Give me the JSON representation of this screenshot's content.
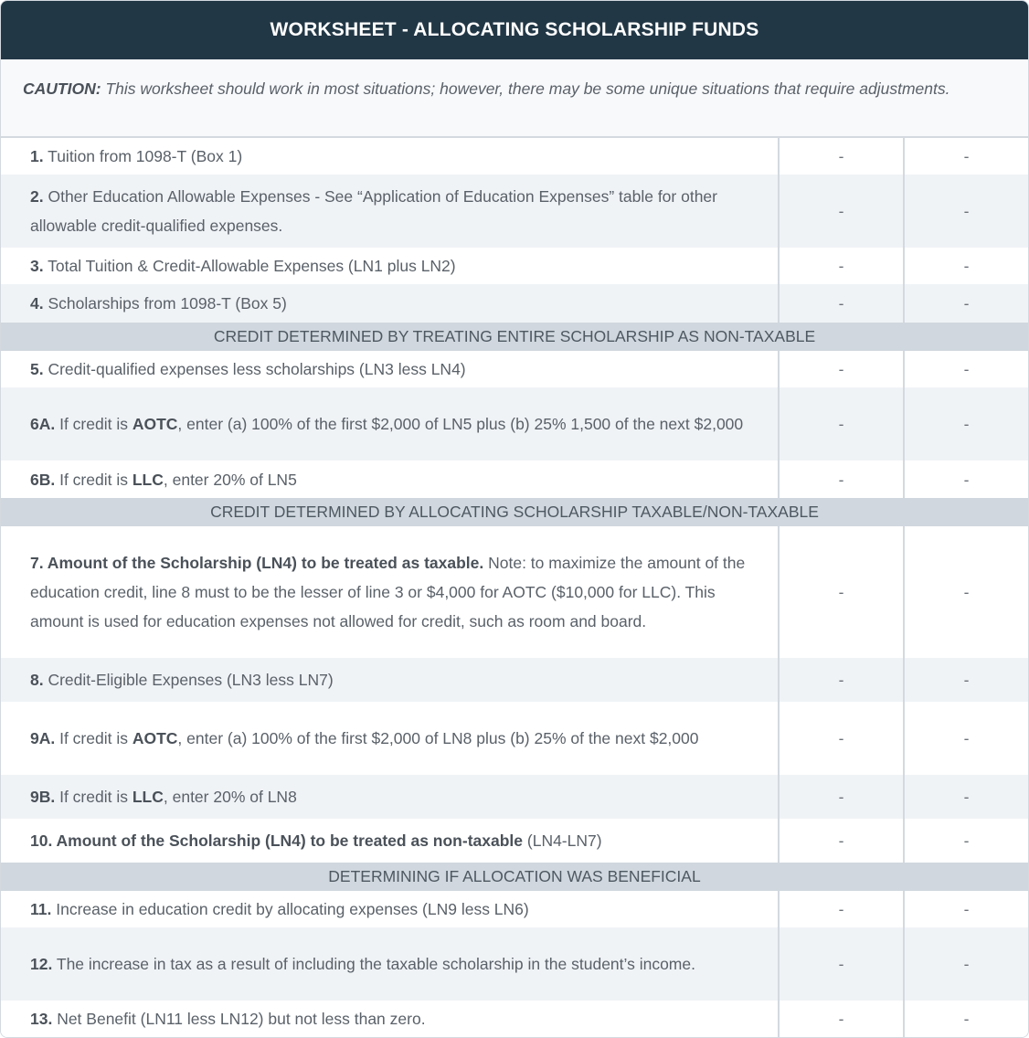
{
  "title": "WORKSHEET - ALLOCATING SCHOLARSHIP FUNDS",
  "caution": {
    "label": "CAUTION:",
    "text": " This worksheet should work in most situations; however, there may be some unique situations that require adjustments."
  },
  "rows": [
    {
      "type": "line",
      "shade": "white",
      "h": 40,
      "segments": [
        {
          "t": "1.",
          "b": true
        },
        {
          "t": " Tuition from 1098-T (Box 1)"
        }
      ],
      "values": [
        "-",
        "-"
      ]
    },
    {
      "type": "line",
      "shade": "grey",
      "h": 80,
      "segments": [
        {
          "t": "2.",
          "b": true
        },
        {
          "t": " Other Education Allowable Expenses - See “Application of Education Expenses” table for other allowable credit-qualified expenses."
        }
      ],
      "values": [
        "-",
        "-"
      ]
    },
    {
      "type": "line",
      "shade": "white",
      "h": 40,
      "segments": [
        {
          "t": "3.",
          "b": true
        },
        {
          "t": " Total Tuition & Credit-Allowable Expenses (LN1 plus LN2)"
        }
      ],
      "values": [
        "-",
        "-"
      ]
    },
    {
      "type": "line",
      "shade": "grey",
      "h": 42,
      "segments": [
        {
          "t": "4.",
          "b": true
        },
        {
          "t": " Scholarships from 1098-T (Box 5)"
        }
      ],
      "values": [
        "-",
        "-"
      ]
    },
    {
      "type": "section",
      "text": "CREDIT DETERMINED BY TREATING ENTIRE SCHOLARSHIP AS NON-TAXABLE"
    },
    {
      "type": "line",
      "shade": "white",
      "h": 40,
      "segments": [
        {
          "t": "5.",
          "b": true
        },
        {
          "t": " Credit-qualified expenses less scholarships (LN3 less LN4)"
        }
      ],
      "values": [
        "-",
        "-"
      ]
    },
    {
      "type": "line",
      "shade": "grey",
      "h": 80,
      "segments": [
        {
          "t": "6A.",
          "b": true
        },
        {
          "t": " If credit is "
        },
        {
          "t": "AOTC",
          "b": true
        },
        {
          "t": ", enter (a) 100% of the first $2,000 of LN5 plus (b) 25% 1,500 of the next $2,000"
        }
      ],
      "values": [
        "-",
        "-"
      ]
    },
    {
      "type": "line",
      "shade": "white",
      "h": 41,
      "segments": [
        {
          "t": "6B.",
          "b": true
        },
        {
          "t": " If credit is "
        },
        {
          "t": "LLC",
          "b": true
        },
        {
          "t": ", enter 20% of LN5"
        }
      ],
      "values": [
        "-",
        "-"
      ]
    },
    {
      "type": "section",
      "text": "CREDIT DETERMINED BY ALLOCATING SCHOLARSHIP TAXABLE/NON-TAXABLE"
    },
    {
      "type": "line",
      "shade": "white",
      "h": 144,
      "segments": [
        {
          "t": "7. Amount of the Scholarship (LN4) to be treated as taxable.",
          "b": true
        },
        {
          "t": " Note: to maximize the amount of the education credit, line 8 must to be the lesser of line 3 or $4,000 for AOTC ($10,000 for LLC). This amount is used for education expenses not allowed for credit, such as room and board."
        }
      ],
      "values": [
        "-",
        "-"
      ]
    },
    {
      "type": "line",
      "shade": "grey",
      "h": 48,
      "segments": [
        {
          "t": "8.",
          "b": true
        },
        {
          "t": " Credit-Eligible Expenses (LN3 less LN7)"
        }
      ],
      "values": [
        "-",
        "-"
      ]
    },
    {
      "type": "line",
      "shade": "white",
      "h": 80,
      "segments": [
        {
          "t": "9A.",
          "b": true
        },
        {
          "t": " If credit is "
        },
        {
          "t": "AOTC",
          "b": true
        },
        {
          "t": ", enter (a) 100% of the first $2,000 of LN8 plus (b) 25% of the next $2,000"
        }
      ],
      "values": [
        "-",
        "-"
      ]
    },
    {
      "type": "line",
      "shade": "grey",
      "h": 48,
      "segments": [
        {
          "t": "9B.",
          "b": true
        },
        {
          "t": " If credit is "
        },
        {
          "t": "LLC",
          "b": true
        },
        {
          "t": ", enter 20% of LN8"
        }
      ],
      "values": [
        "-",
        "-"
      ]
    },
    {
      "type": "line",
      "shade": "white",
      "h": 48,
      "segments": [
        {
          "t": "10. Amount of the Scholarship (LN4) to be treated as non-taxable",
          "b": true
        },
        {
          "t": " (LN4-LN7)"
        }
      ],
      "values": [
        "-",
        "-"
      ]
    },
    {
      "type": "section",
      "text": "DETERMINING IF ALLOCATION WAS BENEFICIAL"
    },
    {
      "type": "line",
      "shade": "white",
      "h": 40,
      "segments": [
        {
          "t": "11.",
          "b": true
        },
        {
          "t": " Increase in education credit by allocating expenses (LN9 less LN6)"
        }
      ],
      "values": [
        "-",
        "-"
      ]
    },
    {
      "type": "line",
      "shade": "grey",
      "h": 80,
      "segments": [
        {
          "t": "12.",
          "b": true
        },
        {
          "t": " The increase in tax as a result of including the taxable scholarship in the student’s income."
        }
      ],
      "values": [
        "-",
        "-"
      ]
    },
    {
      "type": "line",
      "shade": "white",
      "h": 40,
      "segments": [
        {
          "t": "13.",
          "b": true
        },
        {
          "t": " Net Benefit (LN11 less LN12) but not less than zero."
        }
      ],
      "values": [
        "-",
        "-"
      ]
    }
  ]
}
